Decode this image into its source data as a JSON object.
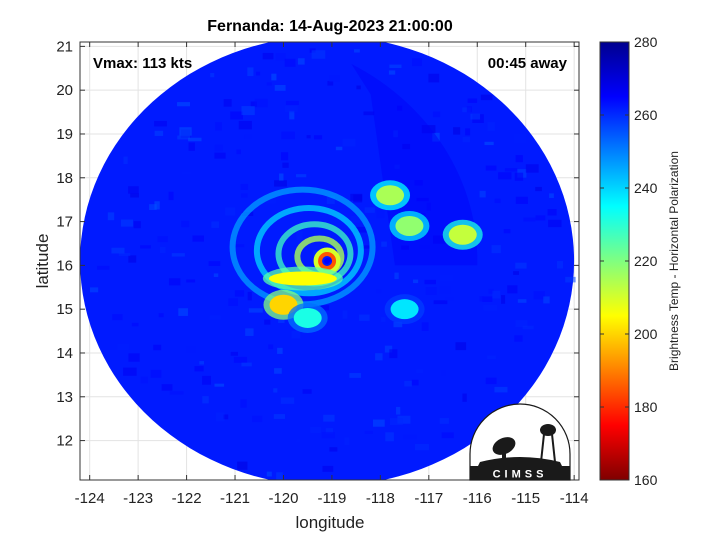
{
  "chart_data": {
    "type": "heatmap",
    "title": "Fernanda: 14-Aug-2023 21:00:00",
    "xlabel": "longitude",
    "ylabel": "latitude",
    "xlim": [
      -124.2,
      -113.9
    ],
    "ylim": [
      11.1,
      21.1
    ],
    "x_ticks": [
      -124,
      -123,
      -122,
      -121,
      -120,
      -119,
      -118,
      -117,
      -116,
      -115,
      -114
    ],
    "y_ticks": [
      12,
      13,
      14,
      15,
      16,
      17,
      18,
      19,
      20,
      21
    ],
    "x_tick_labels": [
      "-124",
      "-123",
      "-122",
      "-121",
      "-120",
      "-119",
      "-118",
      "-117",
      "-116",
      "-115",
      "-114"
    ],
    "y_tick_labels": [
      "12",
      "13",
      "14",
      "15",
      "16",
      "17",
      "18",
      "19",
      "20",
      "21"
    ],
    "grid": true,
    "annotations": {
      "vmax": "Vmax: 113 kts",
      "time_away": "00:45 away"
    },
    "colorbar": {
      "label": "Brightness Temp - Horizontal Polarization",
      "range": [
        160,
        280
      ],
      "ticks": [
        160,
        180,
        200,
        220,
        240,
        260,
        280
      ],
      "tick_labels": [
        "160",
        "180",
        "200",
        "220",
        "240",
        "260",
        "280"
      ],
      "colormap": [
        "#7f0000",
        "#ff0000",
        "#ff8000",
        "#ffff00",
        "#80ff80",
        "#00ffff",
        "#0080ff",
        "#0000ff",
        "#00008f"
      ]
    },
    "field": {
      "background_tb": 262,
      "swath_center": [
        -119.1,
        16.1
      ],
      "eye_center": [
        -119.1,
        16.1
      ],
      "features": [
        {
          "kind": "eyewall",
          "lon": -119.1,
          "lat": 16.1,
          "tb": 185
        },
        {
          "kind": "rainband",
          "lon": -119.6,
          "lat": 15.7,
          "tb": 205
        },
        {
          "kind": "convection",
          "lon": -120.0,
          "lat": 15.1,
          "tb": 200
        },
        {
          "kind": "convection",
          "lon": -117.8,
          "lat": 17.6,
          "tb": 215
        },
        {
          "kind": "convection",
          "lon": -117.4,
          "lat": 16.9,
          "tb": 218
        },
        {
          "kind": "convection",
          "lon": -116.3,
          "lat": 16.7,
          "tb": 212
        },
        {
          "kind": "convection",
          "lon": -117.5,
          "lat": 15.0,
          "tb": 238
        },
        {
          "kind": "convection",
          "lon": -119.5,
          "lat": 14.8,
          "tb": 232
        }
      ]
    }
  },
  "logo": {
    "text": "CIMSS",
    "colors": {
      "ink": "#1a1a1a",
      "fill": "#ffffff"
    }
  }
}
